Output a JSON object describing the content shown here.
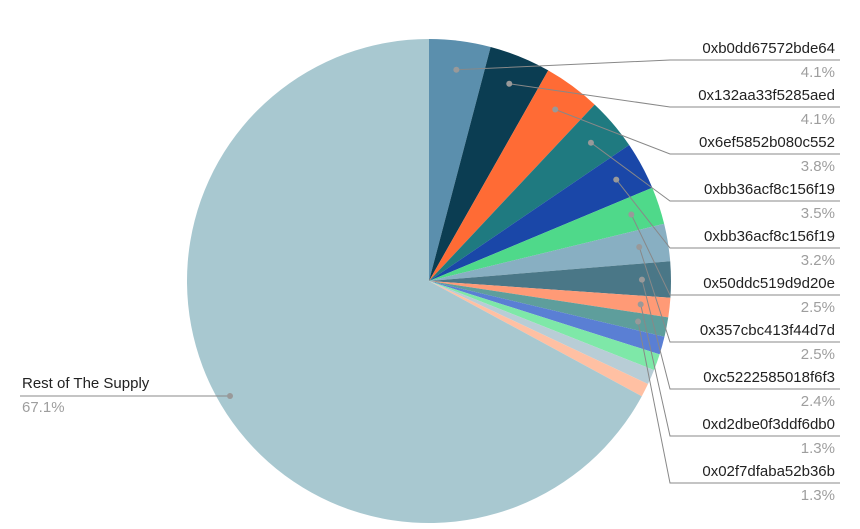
{
  "chart_data": {
    "type": "pie",
    "categories": [
      "0xb0dd67572bde64",
      "0x132aa33f5285aed",
      "0x6ef5852b080c552",
      "0xbb36acf8c156f19",
      "0xbb36acf8c156f19",
      "0x50ddc519d9d20e",
      "0x357cbc413f44d7d",
      "0xc5222585018f6f3",
      "0xd2dbe0f3ddf6db0",
      "0x02f7dfaba52b36b",
      null,
      null,
      null,
      null,
      "Rest of The Supply"
    ],
    "values": [
      4.1,
      4.1,
      3.8,
      3.5,
      3.2,
      2.5,
      2.5,
      2.4,
      1.3,
      1.3,
      1.2,
      1.1,
      1.0,
      0.9,
      67.1
    ],
    "value_labels": [
      "4.1%",
      "4.1%",
      "3.8%",
      "3.5%",
      "3.2%",
      "2.5%",
      "2.5%",
      "2.4%",
      "1.3%",
      "1.3%",
      null,
      null,
      null,
      null,
      "67.1%"
    ],
    "colors": [
      "#5b8fad",
      "#0b3d52",
      "#ff6b35",
      "#1f7a80",
      "#1a47a8",
      "#4fd98a",
      "#88afc2",
      "#4a7787",
      "#ff9a76",
      "#5e9e9c",
      "#5a7fd4",
      "#7ee8a8",
      "#b8cdd6",
      "#ffc0a3",
      "#a8c8d0"
    ]
  }
}
